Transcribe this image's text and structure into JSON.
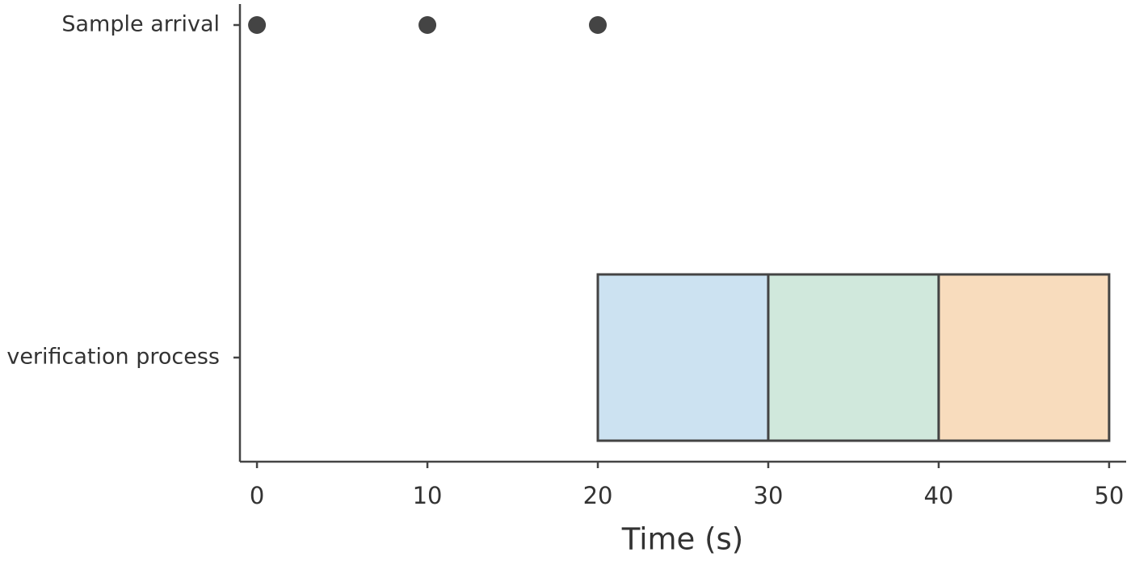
{
  "chart_data": {
    "type": "gantt",
    "categories": [
      "Sample arrival",
      "verification process"
    ],
    "xlabel": "Time (s)",
    "xlim": [
      -1,
      51
    ],
    "xticks": [
      0,
      10,
      20,
      30,
      40,
      50
    ],
    "points": {
      "x": [
        0,
        10,
        20
      ],
      "color": "#444444"
    },
    "segments": {
      "starts": [
        20,
        30,
        40
      ],
      "ends": [
        30,
        40,
        50
      ],
      "colors": [
        "#cce2f1",
        "#d0e8dc",
        "#f8dcbd"
      ],
      "edgecolor": "#444444"
    }
  }
}
